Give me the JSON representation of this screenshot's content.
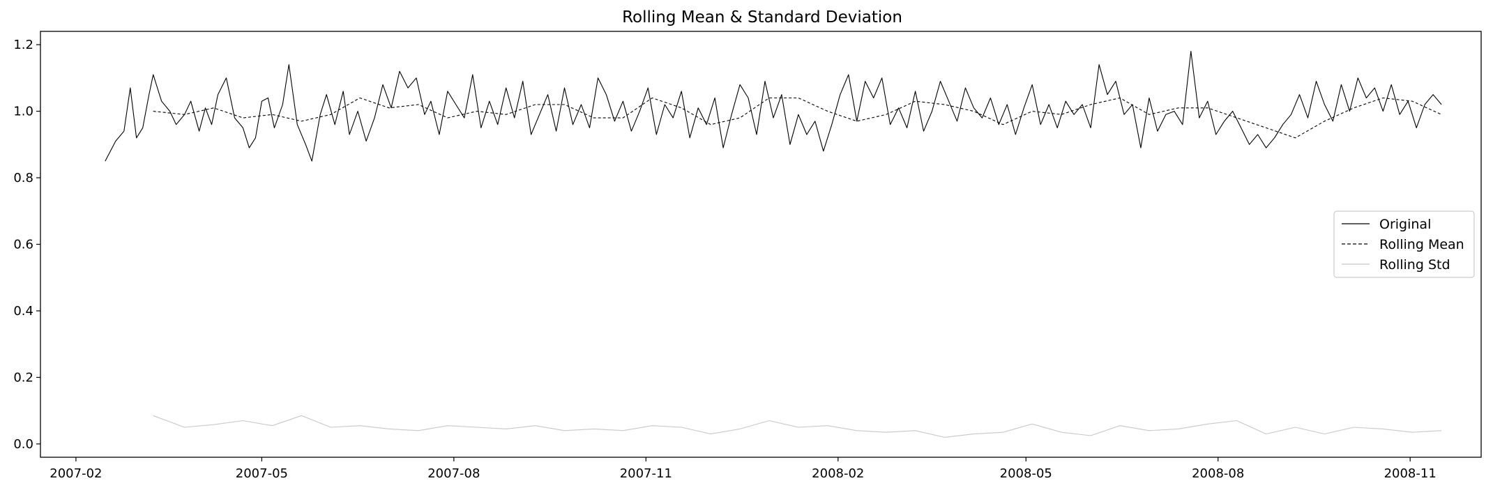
{
  "chart_data": {
    "type": "line",
    "title": "Rolling Mean & Standard Deviation",
    "xlabel": "",
    "ylabel": "",
    "x_range": [
      "2007-01-15",
      "2008-12-05"
    ],
    "ylim": [
      -0.04,
      1.24
    ],
    "x_ticks": [
      {
        "date": "2007-02-01",
        "label": "2007-02"
      },
      {
        "date": "2007-05-01",
        "label": "2007-05"
      },
      {
        "date": "2007-08-01",
        "label": "2007-08"
      },
      {
        "date": "2007-11-01",
        "label": "2007-11"
      },
      {
        "date": "2008-02-01",
        "label": "2008-02"
      },
      {
        "date": "2008-05-01",
        "label": "2008-05"
      },
      {
        "date": "2008-08-01",
        "label": "2008-08"
      },
      {
        "date": "2008-11-01",
        "label": "2008-11"
      }
    ],
    "y_ticks": [
      {
        "value": 0.0,
        "label": "0.0"
      },
      {
        "value": 0.2,
        "label": "0.2"
      },
      {
        "value": 0.4,
        "label": "0.4"
      },
      {
        "value": 0.6,
        "label": "0.6"
      },
      {
        "value": 0.8,
        "label": "0.8"
      },
      {
        "value": 1.0,
        "label": "1.0"
      },
      {
        "value": 1.2,
        "label": "1.2"
      }
    ],
    "grid": false,
    "legend_position": "center-right",
    "series": [
      {
        "name": "Original",
        "color": "#000000",
        "dash": "solid",
        "x": [
          "2007-02-15",
          "2007-02-20",
          "2007-02-24",
          "2007-02-27",
          "2007-03-02",
          "2007-03-05",
          "2007-03-08",
          "2007-03-10",
          "2007-03-14",
          "2007-03-18",
          "2007-03-21",
          "2007-03-25",
          "2007-03-28",
          "2007-04-01",
          "2007-04-04",
          "2007-04-07",
          "2007-04-10",
          "2007-04-14",
          "2007-04-18",
          "2007-04-22",
          "2007-04-25",
          "2007-04-28",
          "2007-05-01",
          "2007-05-04",
          "2007-05-07",
          "2007-05-11",
          "2007-05-14",
          "2007-05-18",
          "2007-05-22",
          "2007-05-25",
          "2007-05-29",
          "2007-06-01",
          "2007-06-05",
          "2007-06-09",
          "2007-06-12",
          "2007-06-16",
          "2007-06-20",
          "2007-06-24",
          "2007-06-28",
          "2007-07-02",
          "2007-07-06",
          "2007-07-10",
          "2007-07-14",
          "2007-07-18",
          "2007-07-21",
          "2007-07-25",
          "2007-07-29",
          "2007-08-02",
          "2007-08-06",
          "2007-08-10",
          "2007-08-14",
          "2007-08-18",
          "2007-08-22",
          "2007-08-26",
          "2007-08-30",
          "2007-09-03",
          "2007-09-07",
          "2007-09-11",
          "2007-09-15",
          "2007-09-19",
          "2007-09-23",
          "2007-09-27",
          "2007-10-01",
          "2007-10-05",
          "2007-10-09",
          "2007-10-13",
          "2007-10-17",
          "2007-10-21",
          "2007-10-25",
          "2007-10-29",
          "2007-11-02",
          "2007-11-06",
          "2007-11-10",
          "2007-11-14",
          "2007-11-18",
          "2007-11-22",
          "2007-11-26",
          "2007-11-30",
          "2007-12-04",
          "2007-12-08",
          "2007-12-12",
          "2007-12-16",
          "2007-12-20",
          "2007-12-24",
          "2007-12-28",
          "2008-01-01",
          "2008-01-05",
          "2008-01-09",
          "2008-01-13",
          "2008-01-17",
          "2008-01-21",
          "2008-01-25",
          "2008-01-29",
          "2008-02-02",
          "2008-02-06",
          "2008-02-10",
          "2008-02-14",
          "2008-02-18",
          "2008-02-22",
          "2008-02-26",
          "2008-03-01",
          "2008-03-05",
          "2008-03-09",
          "2008-03-13",
          "2008-03-17",
          "2008-03-21",
          "2008-03-25",
          "2008-03-29",
          "2008-04-02",
          "2008-04-06",
          "2008-04-10",
          "2008-04-14",
          "2008-04-18",
          "2008-04-22",
          "2008-04-26",
          "2008-04-30",
          "2008-05-04",
          "2008-05-08",
          "2008-05-12",
          "2008-05-16",
          "2008-05-20",
          "2008-05-24",
          "2008-05-28",
          "2008-06-01",
          "2008-06-05",
          "2008-06-09",
          "2008-06-13",
          "2008-06-17",
          "2008-06-21",
          "2008-06-25",
          "2008-06-29",
          "2008-07-03",
          "2008-07-07",
          "2008-07-11",
          "2008-07-15",
          "2008-07-19",
          "2008-07-23",
          "2008-07-27",
          "2008-07-31",
          "2008-08-04",
          "2008-08-08",
          "2008-08-12",
          "2008-08-16",
          "2008-08-20",
          "2008-08-24",
          "2008-08-28",
          "2008-09-01",
          "2008-09-05",
          "2008-09-09",
          "2008-09-13",
          "2008-09-17",
          "2008-09-21",
          "2008-09-25",
          "2008-09-29",
          "2008-10-03",
          "2008-10-07",
          "2008-10-11",
          "2008-10-15",
          "2008-10-19",
          "2008-10-23",
          "2008-10-27",
          "2008-10-31",
          "2008-11-04",
          "2008-11-08",
          "2008-11-12",
          "2008-11-16"
        ],
        "y": [
          0.85,
          0.91,
          0.94,
          1.07,
          0.92,
          0.95,
          1.05,
          1.11,
          1.03,
          1.0,
          0.96,
          0.99,
          1.03,
          0.94,
          1.01,
          0.96,
          1.05,
          1.1,
          0.98,
          0.95,
          0.89,
          0.92,
          1.03,
          1.04,
          0.95,
          1.02,
          1.14,
          0.96,
          0.9,
          0.85,
          0.99,
          1.05,
          0.96,
          1.06,
          0.93,
          1.0,
          0.91,
          0.98,
          1.08,
          1.01,
          1.12,
          1.07,
          1.1,
          0.99,
          1.03,
          0.93,
          1.06,
          1.02,
          0.98,
          1.11,
          0.95,
          1.03,
          0.96,
          1.07,
          0.98,
          1.09,
          0.93,
          0.99,
          1.05,
          0.94,
          1.07,
          0.96,
          1.02,
          0.95,
          1.1,
          1.05,
          0.97,
          1.03,
          0.94,
          1.0,
          1.07,
          0.93,
          1.02,
          0.98,
          1.06,
          0.92,
          1.01,
          0.96,
          1.04,
          0.89,
          0.99,
          1.08,
          1.04,
          0.93,
          1.09,
          0.98,
          1.05,
          0.9,
          0.99,
          0.93,
          0.97,
          0.88,
          0.96,
          1.05,
          1.11,
          0.97,
          1.09,
          1.04,
          1.1,
          0.96,
          1.01,
          0.95,
          1.06,
          0.94,
          1.0,
          1.09,
          1.03,
          0.97,
          1.07,
          1.01,
          0.98,
          1.04,
          0.96,
          1.02,
          0.93,
          1.01,
          1.08,
          0.96,
          1.02,
          0.95,
          1.03,
          0.99,
          1.02,
          0.95,
          1.14,
          1.05,
          1.09,
          0.99,
          1.02,
          0.89,
          1.04,
          0.94,
          0.99,
          1.0,
          0.96,
          1.18,
          0.98,
          1.03,
          0.93,
          0.97,
          1.0,
          0.95,
          0.9,
          0.93,
          0.89,
          0.92,
          0.96,
          0.99,
          1.05,
          0.98,
          1.09,
          1.02,
          0.97,
          1.08,
          1.0,
          1.1,
          1.04,
          1.07,
          1.0,
          1.08,
          0.99,
          1.03,
          0.95,
          1.02,
          1.05,
          1.02
        ]
      },
      {
        "name": "Rolling Mean",
        "color": "#000000",
        "dash": "dashed",
        "x": [
          "2007-03-10",
          "2007-03-25",
          "2007-04-08",
          "2007-04-22",
          "2007-05-06",
          "2007-05-20",
          "2007-06-03",
          "2007-06-17",
          "2007-07-01",
          "2007-07-15",
          "2007-07-29",
          "2007-08-12",
          "2007-08-26",
          "2007-09-09",
          "2007-09-23",
          "2007-10-07",
          "2007-10-21",
          "2007-11-04",
          "2007-11-18",
          "2007-12-02",
          "2007-12-16",
          "2007-12-30",
          "2008-01-13",
          "2008-01-27",
          "2008-02-10",
          "2008-02-24",
          "2008-03-09",
          "2008-03-23",
          "2008-04-06",
          "2008-04-20",
          "2008-05-04",
          "2008-05-18",
          "2008-06-01",
          "2008-06-15",
          "2008-06-29",
          "2008-07-13",
          "2008-07-27",
          "2008-08-10",
          "2008-08-24",
          "2008-09-07",
          "2008-09-21",
          "2008-10-05",
          "2008-10-19",
          "2008-11-02",
          "2008-11-16"
        ],
        "y": [
          1.0,
          0.99,
          1.01,
          0.98,
          0.99,
          0.97,
          0.99,
          1.04,
          1.01,
          1.02,
          0.98,
          1.0,
          0.99,
          1.02,
          1.02,
          0.98,
          0.98,
          1.04,
          1.01,
          0.96,
          0.98,
          1.04,
          1.04,
          1.0,
          0.97,
          0.99,
          1.03,
          1.02,
          1.0,
          0.96,
          1.0,
          0.99,
          1.02,
          1.04,
          0.99,
          1.01,
          1.01,
          0.98,
          0.95,
          0.92,
          0.97,
          1.01,
          1.04,
          1.03,
          0.99
        ]
      },
      {
        "name": "Rolling Std",
        "color": "#c8c8c8",
        "dash": "solid",
        "x": [
          "2007-03-10",
          "2007-03-25",
          "2007-04-08",
          "2007-04-22",
          "2007-05-06",
          "2007-05-20",
          "2007-06-03",
          "2007-06-17",
          "2007-07-01",
          "2007-07-15",
          "2007-07-29",
          "2007-08-12",
          "2007-08-26",
          "2007-09-09",
          "2007-09-23",
          "2007-10-07",
          "2007-10-21",
          "2007-11-04",
          "2007-11-18",
          "2007-12-02",
          "2007-12-16",
          "2007-12-30",
          "2008-01-13",
          "2008-01-27",
          "2008-02-10",
          "2008-02-24",
          "2008-03-09",
          "2008-03-23",
          "2008-04-06",
          "2008-04-20",
          "2008-05-04",
          "2008-05-18",
          "2008-06-01",
          "2008-06-15",
          "2008-06-29",
          "2008-07-13",
          "2008-07-27",
          "2008-08-10",
          "2008-08-24",
          "2008-09-07",
          "2008-09-21",
          "2008-10-05",
          "2008-10-19",
          "2008-11-02",
          "2008-11-16"
        ],
        "y": [
          0.085,
          0.05,
          0.058,
          0.07,
          0.055,
          0.085,
          0.05,
          0.055,
          0.045,
          0.04,
          0.055,
          0.05,
          0.045,
          0.055,
          0.04,
          0.045,
          0.04,
          0.055,
          0.05,
          0.03,
          0.045,
          0.07,
          0.05,
          0.055,
          0.04,
          0.035,
          0.04,
          0.02,
          0.03,
          0.035,
          0.06,
          0.035,
          0.025,
          0.055,
          0.04,
          0.045,
          0.06,
          0.07,
          0.03,
          0.05,
          0.03,
          0.05,
          0.045,
          0.035,
          0.04
        ]
      }
    ]
  }
}
